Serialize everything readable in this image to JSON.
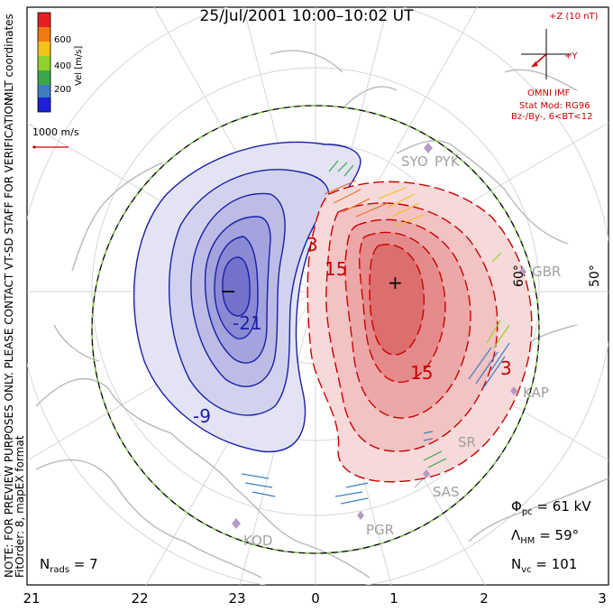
{
  "title": "25/Jul/2001 10:00–10:02 UT",
  "mlt_labels": [
    "21",
    "22",
    "23",
    "0",
    "1",
    "2",
    "3"
  ],
  "latitude_labels": [
    "60°",
    "50°"
  ],
  "radars": [
    "SYO",
    "PYK",
    "GBR",
    "KAP",
    "SAS",
    "PGR",
    "KOD"
  ],
  "radar_codes_partial": [
    "SR"
  ],
  "colorbar": {
    "label": "Vel [m/s]",
    "ticks": [
      "600",
      "400",
      "200"
    ],
    "colors": [
      "#e62020",
      "#f07a10",
      "#f5c21a",
      "#8fd42a",
      "#3aa84a",
      "#3f7fc0",
      "#2020d8"
    ]
  },
  "velocity_scale": {
    "label": "1000 m/s",
    "color": "#cc0000"
  },
  "left_vertical": {
    "coords": "MLT coordinates",
    "note": "NOTE: FOR PREVIEW PURPOSES ONLY. PLEASE CONTACT VT-SD STAFF FOR VERIFICATION.",
    "fit": "FitOrder: 8, mapEX format"
  },
  "imf": {
    "z_label": "+Z (10 nT)",
    "y_label": "+Y",
    "source": "OMNI IMF",
    "model": "Stat Mod: RG96",
    "condition": "Bz-/By-, 6<BT<12"
  },
  "contours": {
    "neg_labels": [
      "-21",
      "-9"
    ],
    "pos_labels": [
      "3",
      "15",
      "15",
      "3"
    ]
  },
  "stats": {
    "phi_sym": "Φ",
    "phi_sub": "pc",
    "phi_val": " = 61 kV",
    "lambda_sym": "Λ",
    "lambda_sub": "HM",
    "lambda_val": " = 59°",
    "nvc_sym": "N",
    "nvc_sub": "vc",
    "nvc_val": " = 101",
    "nrads_sym": "N",
    "nrads_sub": "rads",
    "nrads_val": " = 7"
  },
  "markers": {
    "min": "−",
    "max": "+"
  }
}
